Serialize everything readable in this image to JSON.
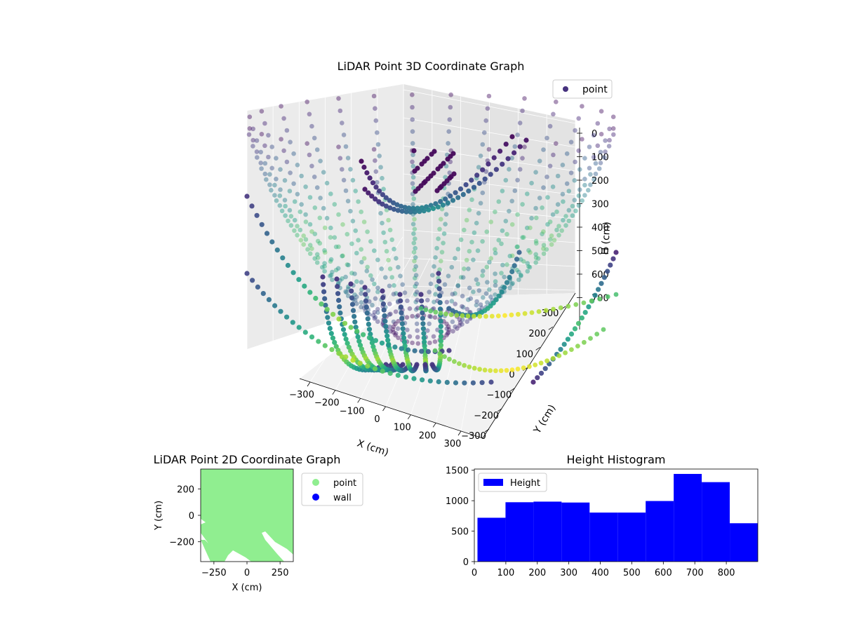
{
  "chart_data": [
    {
      "type": "scatter",
      "projection": "3d",
      "title": "LiDAR Point 3D Coordinate Graph",
      "xlabel": "X (cm)",
      "ylabel": "Y (cm)",
      "zlabel": "H (cm)",
      "x_ticks": [
        "−300",
        "−200",
        "−100",
        "0",
        "100",
        "200",
        "300"
      ],
      "y_ticks": [
        "−300",
        "−200",
        "−100",
        "0",
        "100",
        "200",
        "300"
      ],
      "z_ticks": [
        "0",
        "100",
        "200",
        "300",
        "400",
        "500",
        "600",
        "700"
      ],
      "xlim": [
        -350,
        350
      ],
      "ylim": [
        -350,
        350
      ],
      "zlim": [
        0,
        700
      ],
      "z_inverted": true,
      "colormap": "viridis",
      "legend": {
        "placement": "top-right",
        "entries": [
          {
            "name": "point",
            "color": "#46327e"
          }
        ]
      },
      "grid": true
    },
    {
      "type": "scatter",
      "title": "LiDAR Point 2D Coordinate Graph",
      "xlabel": "X (cm)",
      "ylabel": "Y (cm)",
      "x_ticks": [
        "−250",
        "0",
        "250"
      ],
      "y_ticks": [
        "200",
        "0",
        "−200"
      ],
      "xlim": [
        -350,
        350
      ],
      "ylim": [
        -350,
        350
      ],
      "series": [
        {
          "name": "point",
          "color": "#90ee90"
        },
        {
          "name": "wall",
          "color": "#0000ff"
        }
      ],
      "legend": {
        "placement": "right-outside"
      }
    },
    {
      "type": "bar",
      "title": "Height Histogram",
      "series_name": "Height",
      "color": "#0000ff",
      "bin_edges": [
        10,
        99,
        188,
        277,
        366,
        455,
        544,
        633,
        722,
        811,
        900
      ],
      "values": [
        720,
        975,
        985,
        970,
        805,
        805,
        995,
        1440,
        1305,
        630
      ],
      "x_ticks": [
        "0",
        "100",
        "200",
        "300",
        "400",
        "500",
        "600",
        "700",
        "800"
      ],
      "y_ticks": [
        "0",
        "500",
        "1000",
        "1500"
      ],
      "xlim": [
        0,
        900
      ],
      "ylim": [
        0,
        1520
      ],
      "legend": {
        "placement": "top-left"
      }
    }
  ]
}
